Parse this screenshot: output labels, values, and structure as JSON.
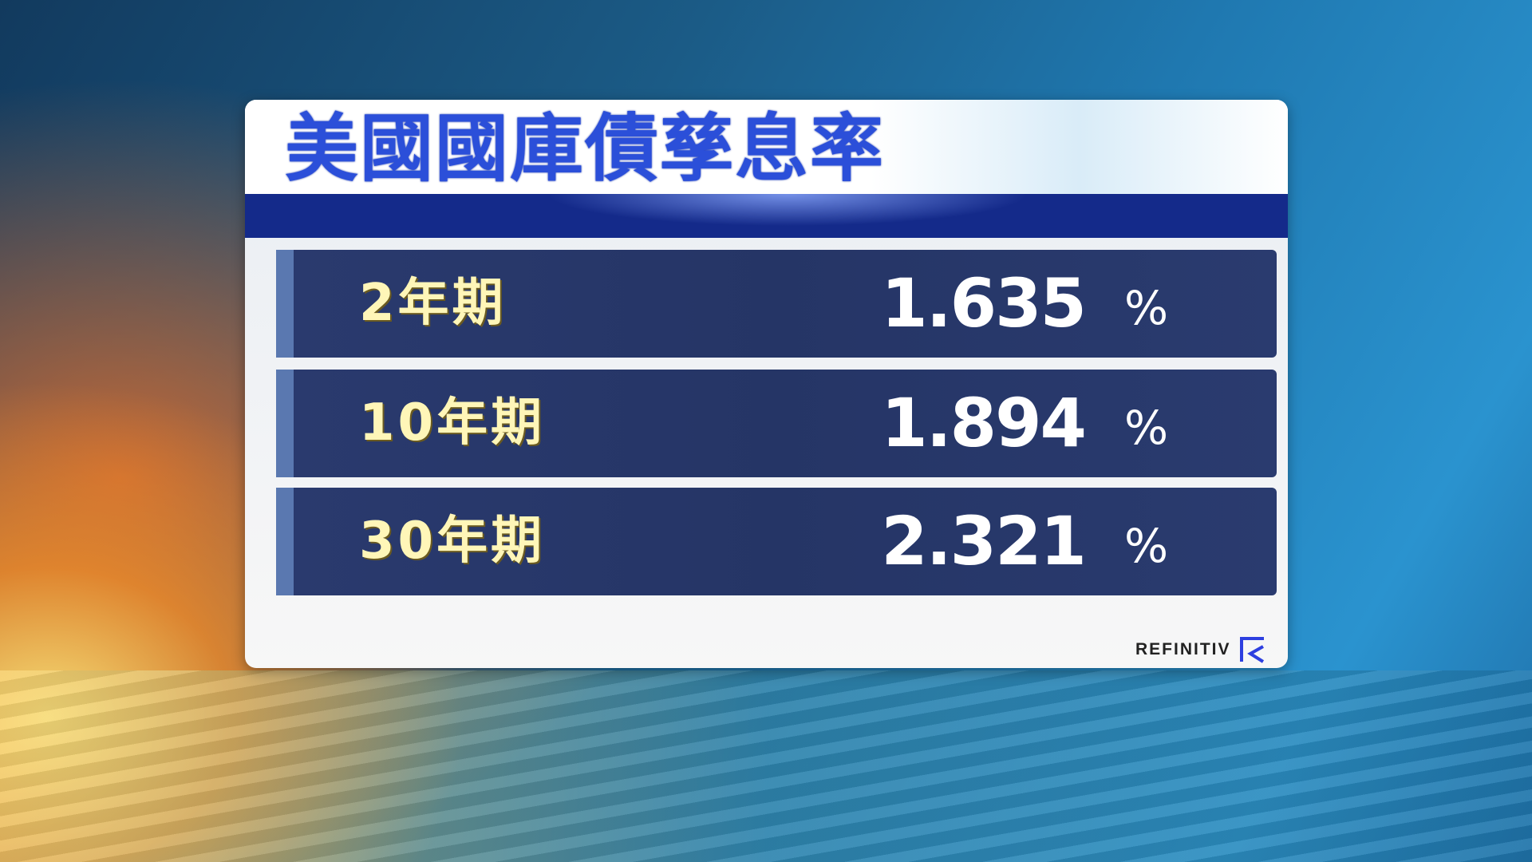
{
  "title": "美國國庫債孳息率",
  "rows": [
    {
      "label": "2年期",
      "value": "1.635",
      "unit": "%"
    },
    {
      "label": "10年期",
      "value": "1.894",
      "unit": "%"
    },
    {
      "label": "30年期",
      "value": "2.321",
      "unit": "%"
    }
  ],
  "source": {
    "logo_text": "REFINITIV",
    "logo_icon": "refinitiv-r-icon"
  },
  "colors": {
    "title": "#2b4fd9",
    "band": "#142a8a",
    "row_bg": "#253566",
    "label": "#fff6b8",
    "value": "#ffffff"
  }
}
